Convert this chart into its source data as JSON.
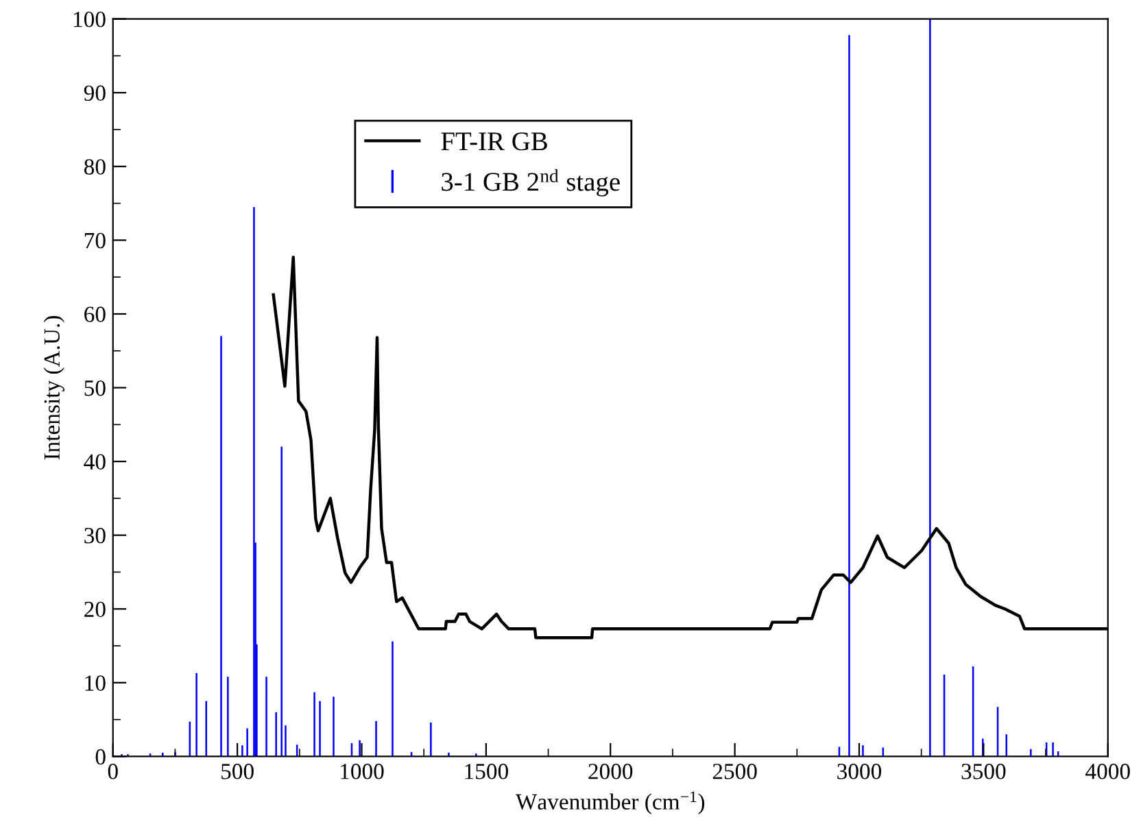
{
  "chart_data": {
    "type": "line",
    "xlabel": "Wavenumber (cm$^{−1}$)",
    "ylabel": "Intensity (A.U.)",
    "xlim": [
      0,
      4000
    ],
    "ylim": [
      0,
      100
    ],
    "xticks": [
      0,
      {
        "value": 250,
        "label": null
      },
      500,
      {
        "value": 750,
        "label": null
      },
      1000,
      {
        "value": 1250,
        "label": null
      },
      1500,
      {
        "value": 1750,
        "label": null
      },
      2000,
      {
        "value": 2250,
        "label": null
      },
      2500,
      {
        "value": 2750,
        "label": null
      },
      3000,
      {
        "value": 3250,
        "label": null
      },
      3500,
      {
        "value": 3750,
        "label": null
      },
      4000
    ],
    "yticks": [
      0,
      {
        "value": 5,
        "label": null
      },
      10,
      {
        "value": 15,
        "label": null
      },
      20,
      {
        "value": 25,
        "label": null
      },
      30,
      {
        "value": 35,
        "label": null
      },
      40,
      {
        "value": 45,
        "label": null
      },
      50,
      {
        "value": 55,
        "label": null
      },
      60,
      {
        "value": 65,
        "label": null
      },
      70,
      {
        "value": 75,
        "label": null
      },
      80,
      {
        "value": 85,
        "label": null
      },
      90,
      {
        "value": 95,
        "label": null
      },
      100
    ],
    "grid": false,
    "legend": "top",
    "series": [
      {
        "name": "FT-IR GB",
        "color": "#000000",
        "x": [
          645,
          691,
          725,
          746,
          776,
          796,
          815,
          825,
          874,
          903,
          933,
          957,
          992,
          1022,
          1036,
          1052,
          1062,
          1067,
          1080,
          1100,
          1120,
          1140,
          1163,
          1229,
          1337,
          1340,
          1375,
          1390,
          1419,
          1434,
          1483,
          1542,
          1562,
          1591,
          1696,
          1700,
          1925,
          1928,
          2641,
          2651,
          2750,
          2755,
          2810,
          2848,
          2897,
          2936,
          2966,
          3015,
          3074,
          3113,
          3182,
          3251,
          3311,
          3360,
          3390,
          3429,
          3488,
          3547,
          3586,
          3645,
          3665,
          3999
        ],
        "values": [
          62.6,
          50.2,
          67.7,
          48.2,
          46.8,
          42.9,
          32.2,
          30.6,
          35.0,
          29.6,
          24.9,
          23.6,
          25.6,
          27.0,
          36.2,
          44.2,
          56.8,
          44.8,
          30.9,
          26.3,
          26.3,
          21.0,
          21.5,
          17.3,
          17.3,
          18.3,
          18.3,
          19.3,
          19.3,
          18.3,
          17.3,
          19.3,
          18.3,
          17.3,
          17.3,
          16.1,
          16.1,
          17.3,
          17.3,
          18.2,
          18.2,
          18.7,
          18.7,
          22.6,
          24.6,
          24.6,
          23.6,
          25.6,
          29.9,
          27.0,
          25.6,
          27.9,
          30.9,
          28.9,
          25.6,
          23.3,
          21.7,
          20.5,
          20.0,
          19.0,
          17.3,
          17.3
        ]
      },
      {
        "name": "3-1 GB 2$^{nd}$ stage",
        "type": "bar",
        "color": "#0000ff",
        "x": [
          35,
          60,
          150,
          200,
          250,
          309,
          336,
          375,
          435,
          462,
          520,
          540,
          567,
          573,
          578,
          617,
          656,
          678,
          694,
          740,
          810,
          832,
          887,
          960,
          992,
          1058,
          1124,
          1200,
          1278,
          1350,
          1460,
          2920,
          2960,
          3015,
          3096,
          3285,
          3342,
          3458,
          3497,
          3557,
          3592,
          3690,
          3753,
          3779,
          3800
        ],
        "values": [
          0.3,
          0.3,
          0.4,
          0.5,
          0.6,
          4.7,
          11.3,
          7.5,
          57,
          10.8,
          1.5,
          3.8,
          74.5,
          29,
          15.2,
          10.8,
          6,
          42,
          4.2,
          1.6,
          8.7,
          7.5,
          8.1,
          1.8,
          2.2,
          4.8,
          15.6,
          0.6,
          4.6,
          0.5,
          0.4,
          1.3,
          97.8,
          1.5,
          1.2,
          100,
          11.1,
          12.2,
          2.4,
          6.7,
          3.0,
          1.0,
          1.9,
          1.9,
          0.7
        ]
      }
    ]
  }
}
